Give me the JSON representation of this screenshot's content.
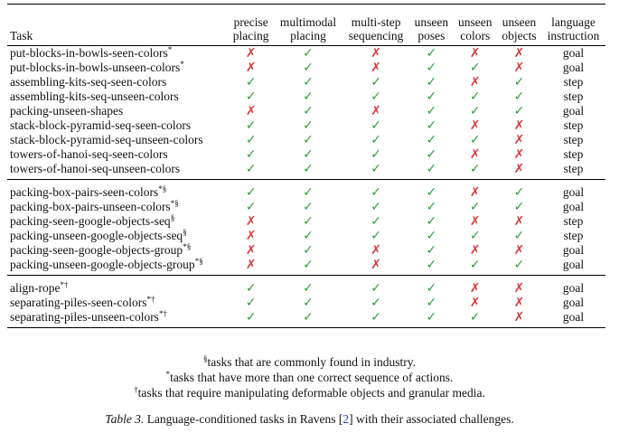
{
  "headers": {
    "task": "Task",
    "cols": [
      [
        "precise",
        "placing"
      ],
      [
        "multimodal",
        "placing"
      ],
      [
        "multi-step",
        "sequencing"
      ],
      [
        "unseen",
        "poses"
      ],
      [
        "unseen",
        "colors"
      ],
      [
        "unseen",
        "objects"
      ],
      [
        "language",
        "instruction"
      ]
    ]
  },
  "symbols": {
    "yes": "✓",
    "no": "✗"
  },
  "groups": [
    [
      {
        "name": "put-blocks-in-bowls-seen-colors",
        "marks": "*",
        "v": [
          0,
          1,
          0,
          1,
          0,
          0
        ],
        "lang": "goal"
      },
      {
        "name": "put-blocks-in-bowls-unseen-colors",
        "marks": "*",
        "v": [
          0,
          1,
          0,
          1,
          1,
          0
        ],
        "lang": "goal"
      },
      {
        "name": "assembling-kits-seq-seen-colors",
        "marks": "",
        "v": [
          1,
          1,
          1,
          1,
          0,
          1
        ],
        "lang": "step"
      },
      {
        "name": "assembling-kits-seq-unseen-colors",
        "marks": "",
        "v": [
          1,
          1,
          1,
          1,
          1,
          1
        ],
        "lang": "step"
      },
      {
        "name": "packing-unseen-shapes",
        "marks": "",
        "v": [
          0,
          1,
          0,
          1,
          1,
          1
        ],
        "lang": "goal"
      },
      {
        "name": "stack-block-pyramid-seq-seen-colors",
        "marks": "",
        "v": [
          1,
          1,
          1,
          1,
          0,
          0
        ],
        "lang": "step"
      },
      {
        "name": "stack-block-pyramid-seq-unseen-colors",
        "marks": "",
        "v": [
          1,
          1,
          1,
          1,
          1,
          0
        ],
        "lang": "step"
      },
      {
        "name": "towers-of-hanoi-seq-seen-colors",
        "marks": "",
        "v": [
          1,
          1,
          1,
          1,
          0,
          0
        ],
        "lang": "step"
      },
      {
        "name": "towers-of-hanoi-seq-unseen-colors",
        "marks": "",
        "v": [
          1,
          1,
          1,
          1,
          1,
          0
        ],
        "lang": "step"
      }
    ],
    [
      {
        "name": "packing-box-pairs-seen-colors",
        "marks": "*§",
        "v": [
          1,
          1,
          1,
          1,
          0,
          1
        ],
        "lang": "goal"
      },
      {
        "name": "packing-box-pairs-unseen-colors",
        "marks": "*§",
        "v": [
          1,
          1,
          1,
          1,
          1,
          1
        ],
        "lang": "goal"
      },
      {
        "name": "packing-seen-google-objects-seq",
        "marks": "§",
        "v": [
          0,
          1,
          1,
          1,
          0,
          0
        ],
        "lang": "step"
      },
      {
        "name": "packing-unseen-google-objects-seq",
        "marks": "§",
        "v": [
          0,
          1,
          1,
          1,
          1,
          1
        ],
        "lang": "step"
      },
      {
        "name": "packing-seen-google-objects-group",
        "marks": "*§",
        "v": [
          0,
          1,
          0,
          1,
          0,
          0
        ],
        "lang": "goal"
      },
      {
        "name": "packing-unseen-google-objects-group",
        "marks": "*§",
        "v": [
          0,
          1,
          0,
          1,
          1,
          1
        ],
        "lang": "goal"
      }
    ],
    [
      {
        "name": "align-rope",
        "marks": "*†",
        "v": [
          1,
          1,
          1,
          1,
          0,
          0
        ],
        "lang": "goal"
      },
      {
        "name": "separating-piles-seen-colors",
        "marks": "*†",
        "v": [
          1,
          1,
          1,
          1,
          0,
          0
        ],
        "lang": "goal"
      },
      {
        "name": "separating-piles-unseen-colors",
        "marks": "*†",
        "v": [
          1,
          1,
          1,
          1,
          1,
          0
        ],
        "lang": "goal"
      }
    ]
  ],
  "footnotes": [
    {
      "mark": "§",
      "text": "tasks that are commonly found in industry."
    },
    {
      "mark": "*",
      "text": "tasks that have more than one correct sequence of actions."
    },
    {
      "mark": "†",
      "text": "tasks that require manipulating deformable objects and granular media."
    }
  ],
  "caption": {
    "label": "Table 3.",
    "text_before": " Language-conditioned tasks in Ravens [",
    "ref": "2",
    "text_after": "] with their associated challenges."
  },
  "colors": {
    "check": "#2e9e3a",
    "cross": "#d9383a",
    "citation": "#1f3fbf"
  }
}
